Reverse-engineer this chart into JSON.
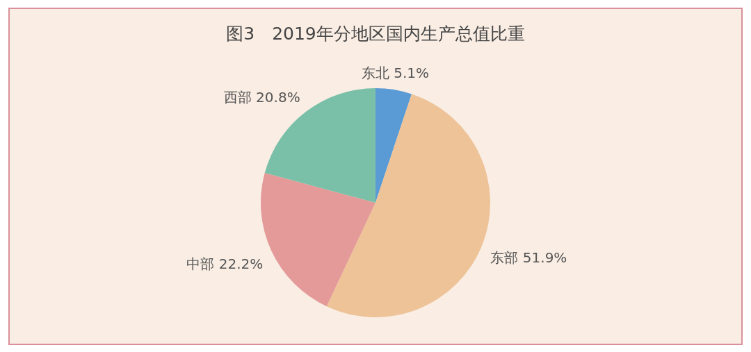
{
  "chart_data": {
    "type": "pie",
    "title": "图3　2019年分地区国内生产总值比重",
    "categories": [
      "东北",
      "东部",
      "中部",
      "西部"
    ],
    "values": [
      5.1,
      51.9,
      22.2,
      20.8
    ],
    "colors": [
      "#5b9bd5",
      "#eec398",
      "#e49a98",
      "#7ac0a8"
    ],
    "value_labels": [
      "5.1%",
      "51.9%",
      "22.2%",
      "20.8%"
    ]
  }
}
